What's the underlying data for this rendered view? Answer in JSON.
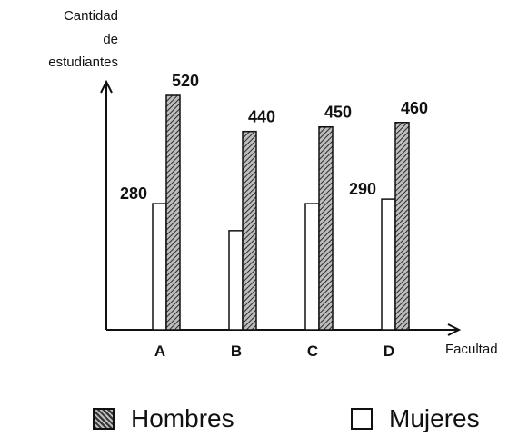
{
  "chart_data": {
    "type": "bar",
    "categories": [
      "A",
      "B",
      "C",
      "D"
    ],
    "series": [
      {
        "name": "Mujeres",
        "values": [
          280,
          220,
          280,
          290
        ],
        "labels": [
          "280",
          "",
          "",
          "290"
        ],
        "pattern": "plain",
        "color": "#ffffff"
      },
      {
        "name": "Hombres",
        "values": [
          520,
          440,
          450,
          460
        ],
        "labels": [
          "520",
          "440",
          "450",
          "460"
        ],
        "pattern": "hatched",
        "color": "#555555"
      }
    ],
    "ylabel_lines": [
      "Cantidad",
      "de",
      "estudiantes"
    ],
    "xlabel": "Facultad",
    "ylim": [
      0,
      600
    ],
    "grid": false,
    "legend_position": "bottom"
  }
}
